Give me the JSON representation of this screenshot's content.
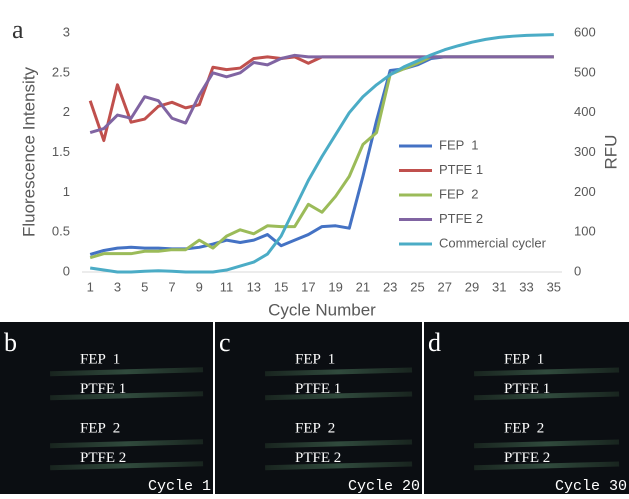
{
  "chart_data": {
    "type": "line",
    "panel_label": "a",
    "x_label": "Cycle Number",
    "y_label": "Fluorescence Intensity",
    "y2_label": "RFU",
    "x": [
      1,
      2,
      3,
      4,
      5,
      6,
      7,
      8,
      9,
      10,
      11,
      12,
      13,
      14,
      15,
      16,
      17,
      18,
      19,
      20,
      21,
      22,
      23,
      24,
      25,
      26,
      27,
      28,
      29,
      30,
      31,
      32,
      33,
      34,
      35
    ],
    "xlim": [
      0.4,
      35.6
    ],
    "xticks": [
      1,
      3,
      5,
      7,
      9,
      11,
      13,
      15,
      17,
      19,
      21,
      23,
      25,
      27,
      29,
      31,
      33,
      35
    ],
    "ylim": [
      0,
      3
    ],
    "yticks": [
      0,
      0.5,
      1,
      1.5,
      2,
      2.5,
      3
    ],
    "y2lim": [
      0,
      600
    ],
    "y2ticks": [
      0,
      100,
      200,
      300,
      400,
      500,
      600
    ],
    "grid": false,
    "legend": "right",
    "series": [
      {
        "name": "FEP  1",
        "color": "#4472c4",
        "values": [
          0.22,
          0.27,
          0.3,
          0.31,
          0.3,
          0.3,
          0.29,
          0.29,
          0.31,
          0.35,
          0.4,
          0.37,
          0.4,
          0.47,
          0.33,
          0.4,
          0.47,
          0.57,
          0.58,
          0.55,
          1.2,
          1.9,
          2.53,
          2.55,
          2.6,
          2.68,
          2.7,
          2.7,
          2.7,
          2.7,
          2.7,
          2.7,
          2.7,
          2.7,
          2.7
        ]
      },
      {
        "name": "PTFE 1",
        "color": "#c0504d",
        "values": [
          2.15,
          1.65,
          2.35,
          1.88,
          1.92,
          2.08,
          2.13,
          2.06,
          2.1,
          2.57,
          2.54,
          2.56,
          2.68,
          2.7,
          2.68,
          2.7,
          2.62,
          2.7,
          2.7,
          2.7,
          2.7,
          2.7,
          2.7,
          2.7,
          2.7,
          2.7,
          2.7,
          2.7,
          2.7,
          2.7,
          2.7,
          2.7,
          2.7,
          2.7,
          2.7
        ]
      },
      {
        "name": "FEP  2",
        "color": "#9bbb59",
        "values": [
          0.18,
          0.23,
          0.23,
          0.23,
          0.26,
          0.26,
          0.28,
          0.28,
          0.4,
          0.3,
          0.45,
          0.53,
          0.48,
          0.58,
          0.57,
          0.57,
          0.85,
          0.75,
          0.95,
          1.2,
          1.6,
          1.75,
          2.48,
          2.55,
          2.62,
          2.7,
          2.7,
          2.7,
          2.7,
          2.7,
          2.7,
          2.7,
          2.7,
          2.7,
          2.7
        ]
      },
      {
        "name": "PTFE 2",
        "color": "#8064a2",
        "values": [
          1.75,
          1.8,
          1.97,
          1.93,
          2.2,
          2.15,
          1.93,
          1.87,
          2.22,
          2.5,
          2.45,
          2.5,
          2.63,
          2.6,
          2.68,
          2.72,
          2.7,
          2.7,
          2.7,
          2.7,
          2.7,
          2.7,
          2.7,
          2.7,
          2.7,
          2.7,
          2.7,
          2.7,
          2.7,
          2.7,
          2.7,
          2.7,
          2.7,
          2.7,
          2.7
        ]
      },
      {
        "name": "Commercial cycler",
        "color": "#4bacc6",
        "axis": "y2",
        "values": [
          10,
          5,
          0,
          0,
          2,
          3,
          2,
          0,
          0,
          0,
          5,
          15,
          25,
          45,
          90,
          160,
          230,
          290,
          345,
          400,
          440,
          470,
          495,
          515,
          530,
          545,
          558,
          568,
          577,
          584,
          589,
          592,
          594,
          595,
          596
        ]
      }
    ]
  },
  "images": [
    {
      "label": "b",
      "tubes": [
        "FEP  1",
        "PTFE 1",
        "FEP  2",
        "PTFE 2"
      ],
      "caption": "Cycle 1"
    },
    {
      "label": "c",
      "tubes": [
        "FEP  1",
        "PTFE 1",
        "FEP  2",
        "PTFE 2"
      ],
      "caption": "Cycle 20"
    },
    {
      "label": "d",
      "tubes": [
        "FEP  1",
        "PTFE 1",
        "FEP  2",
        "PTFE 2"
      ],
      "caption": "Cycle 30"
    }
  ]
}
